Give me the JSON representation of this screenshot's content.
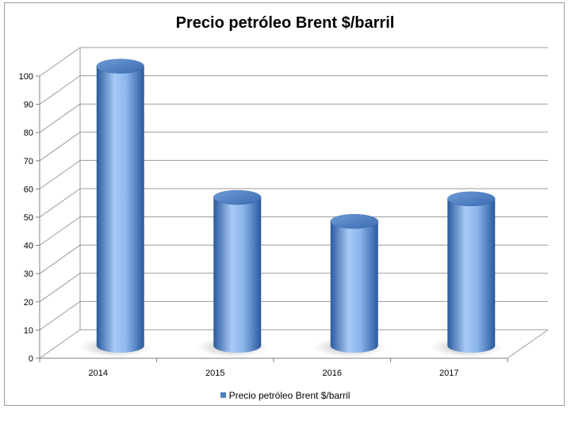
{
  "chart_data": {
    "type": "bar",
    "title": "Precio petróleo Brent $/barril",
    "categories": [
      "2014",
      "2015",
      "2016",
      "2017"
    ],
    "series": [
      {
        "name": "Precio petróleo Brent $/barril",
        "values": [
          99,
          52.5,
          44,
          52
        ]
      }
    ],
    "ylim": [
      0,
      100
    ],
    "yticks": [
      0,
      10,
      20,
      30,
      40,
      50,
      60,
      70,
      80,
      90,
      100
    ],
    "grid": true,
    "legend": "bottom",
    "bar_shape": "cylinder",
    "colors": {
      "bar": "#4f81bd",
      "bar_light": "#a8caf5",
      "bar_dark": "#2a5a9e",
      "grid": "#9a9a9a"
    }
  }
}
